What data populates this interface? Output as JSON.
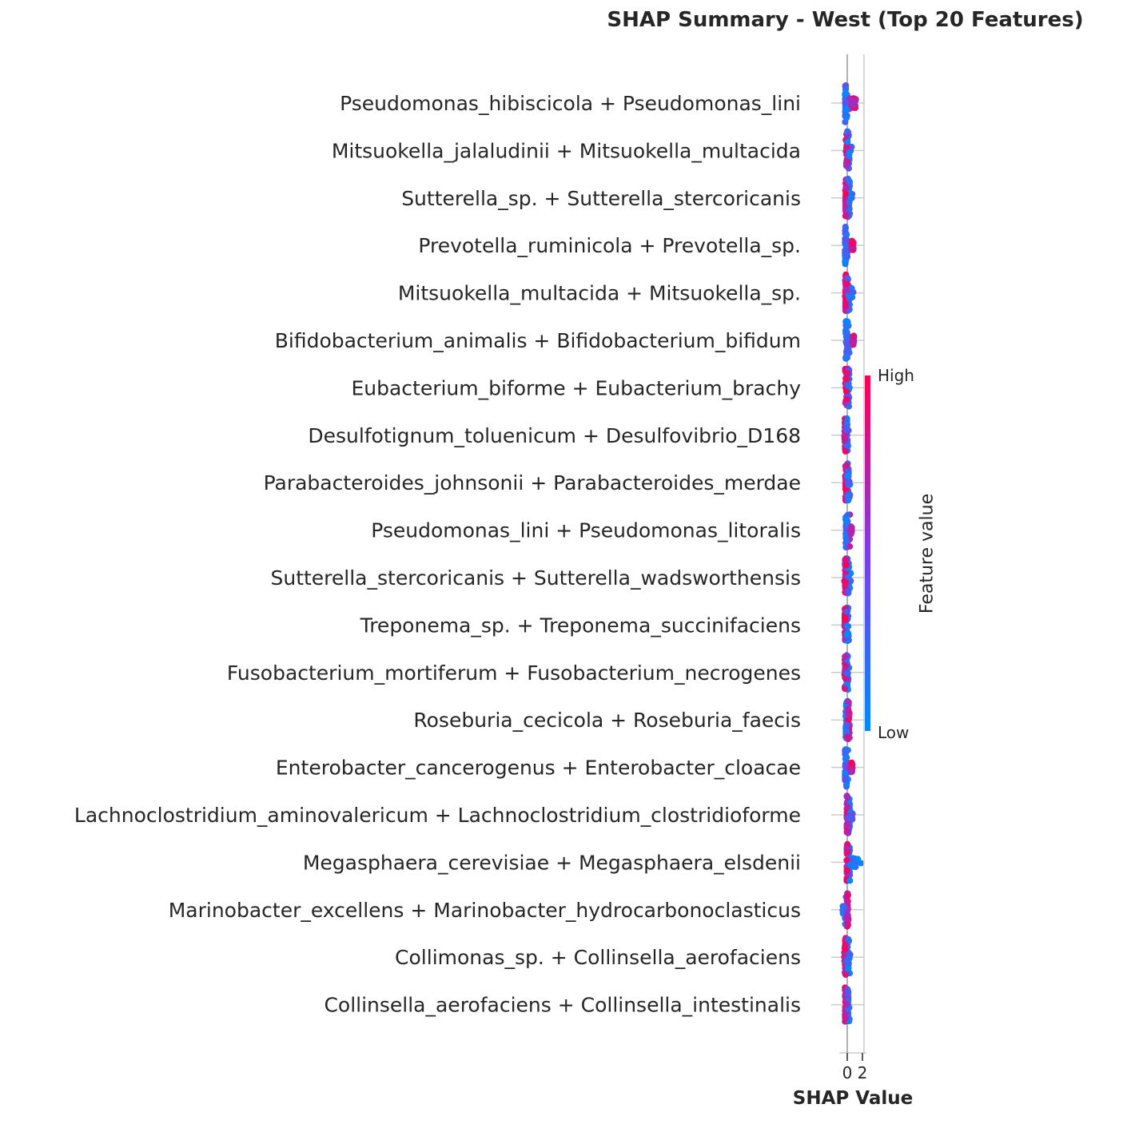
{
  "chart_data": {
    "type": "scatter",
    "subtype": "shap-beeswarm-summary",
    "title": "SHAP Summary - West (Top 20 Features)",
    "xlabel": "SHAP Value",
    "ylabel": "",
    "xlim": [
      -0.3,
      2.2
    ],
    "x_ticks": [
      0,
      2
    ],
    "x_tick_labels": [
      "0",
      "2"
    ],
    "colorbar": {
      "title": "Feature value",
      "high_label": "High",
      "low_label": "Low",
      "high_color": "#ff0052",
      "low_color": "#008bfb"
    },
    "features": [
      {
        "name": "Pseudomonas_hibiscicola + Pseudomonas_lini",
        "low_range": [
          -0.3,
          0.1
        ],
        "high_range": [
          0.2,
          1.3
        ],
        "spread": 1.0
      },
      {
        "name": "Mitsuokella_jalaludinii + Mitsuokella_multacida",
        "low_range": [
          0.0,
          0.6
        ],
        "high_range": [
          -0.2,
          0.1
        ],
        "spread": 1.0
      },
      {
        "name": "Sutterella_sp. + Sutterella_stercoricanis",
        "low_range": [
          0.0,
          0.7
        ],
        "high_range": [
          -0.3,
          0.0
        ],
        "spread": 1.0
      },
      {
        "name": "Prevotella_ruminicola + Prevotella_sp.",
        "low_range": [
          -0.3,
          0.1
        ],
        "high_range": [
          0.4,
          0.9
        ],
        "spread": 1.0
      },
      {
        "name": "Mitsuokella_multacida + Mitsuokella_sp.",
        "low_range": [
          0.0,
          0.8
        ],
        "high_range": [
          -0.3,
          0.0
        ],
        "spread": 1.0
      },
      {
        "name": "Bifidobacterium_animalis + Bifidobacterium_bifidum",
        "low_range": [
          -0.2,
          0.3
        ],
        "high_range": [
          0.6,
          1.0
        ],
        "spread": 1.0
      },
      {
        "name": "Eubacterium_biforme + Eubacterium_brachy",
        "low_range": [
          0.0,
          0.3
        ],
        "high_range": [
          -0.3,
          0.1
        ],
        "spread": 1.0
      },
      {
        "name": "Desulfotignum_toluenicum + Desulfovibrio_D168",
        "low_range": [
          -0.1,
          0.2
        ],
        "high_range": [
          -0.4,
          -0.1
        ],
        "spread": 0.9
      },
      {
        "name": "Parabacteroides_johnsonii + Parabacteroides_merdae",
        "low_range": [
          0.0,
          0.4
        ],
        "high_range": [
          -0.3,
          0.0
        ],
        "spread": 1.0
      },
      {
        "name": "Pseudomonas_lini + Pseudomonas_litoralis",
        "low_range": [
          -0.2,
          0.1
        ],
        "high_range": [
          0.3,
          0.6
        ],
        "spread": 0.9
      },
      {
        "name": "Sutterella_stercoricanis + Sutterella_wadsworthensis",
        "low_range": [
          0.0,
          0.5
        ],
        "high_range": [
          -0.4,
          0.0
        ],
        "spread": 1.0
      },
      {
        "name": "Treponema_sp. + Treponema_succinifaciens",
        "low_range": [
          -0.1,
          0.2
        ],
        "high_range": [
          -0.4,
          -0.1
        ],
        "spread": 0.9
      },
      {
        "name": "Fusobacterium_mortiferum + Fusobacterium_necrogenes",
        "low_range": [
          -0.1,
          0.3
        ],
        "high_range": [
          -0.4,
          -0.1
        ],
        "spread": 0.9
      },
      {
        "name": "Roseburia_cecicola + Roseburia_faecis",
        "low_range": [
          -0.2,
          0.1
        ],
        "high_range": [
          0.0,
          0.4
        ],
        "spread": 1.0
      },
      {
        "name": "Enterobacter_cancerogenus + Enterobacter_cloacae",
        "low_range": [
          -0.3,
          0.1
        ],
        "high_range": [
          0.4,
          0.7
        ],
        "spread": 1.0
      },
      {
        "name": "Lachnoclostridium_aminovalericum + Lachnoclostridium_clostridioforme",
        "low_range": [
          0.1,
          0.8
        ],
        "high_range": [
          -0.1,
          0.1
        ],
        "spread": 1.0
      },
      {
        "name": "Megasphaera_cerevisiae + Megasphaera_elsdenii",
        "low_range": [
          0.2,
          2.1
        ],
        "high_range": [
          -0.1,
          0.1
        ],
        "spread": 1.0
      },
      {
        "name": "Marinobacter_excellens + Marinobacter_hydrocarbonoclasticus",
        "low_range": [
          -0.6,
          0.0
        ],
        "high_range": [
          -0.05,
          0.15
        ],
        "spread": 0.9
      },
      {
        "name": "Collimonas_sp. + Collinsella_aerofaciens",
        "low_range": [
          0.0,
          0.4
        ],
        "high_range": [
          -0.4,
          0.0
        ],
        "spread": 1.0
      },
      {
        "name": "Collinsella_aerofaciens + Collinsella_intestinalis",
        "low_range": [
          0.0,
          0.3
        ],
        "high_range": [
          -0.4,
          0.0
        ],
        "spread": 0.9
      }
    ]
  }
}
